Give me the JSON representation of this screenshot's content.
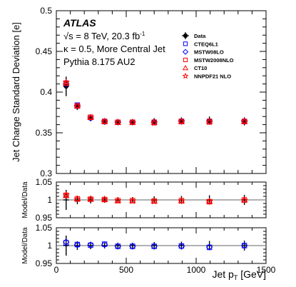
{
  "chart_data": [
    {
      "type": "scatter",
      "panel": "main",
      "ylabel": "Jet Charge Standard Deviation [e]",
      "xlim": [
        0,
        1500
      ],
      "ylim": [
        0.3,
        0.5
      ],
      "yticks": [
        0.3,
        0.35,
        0.4,
        0.45,
        0.5
      ],
      "ytick_labels": [
        "0.3",
        "0.35",
        "0.4",
        "0.45",
        "0.5"
      ],
      "annotations": {
        "atlas": "ATLAS",
        "energy": "√s = 8 TeV, 20.3 fb",
        "energy_sup": "-1",
        "kappa": "κ = 0.5, More Central Jet",
        "generator": "Pythia 8.175 AU2"
      },
      "legend_position": "top-right",
      "x": [
        70,
        150,
        245,
        345,
        440,
        545,
        700,
        895,
        1095,
        1345
      ],
      "series": [
        {
          "name": "Data",
          "marker": "filled-circle",
          "color": "#000000",
          "values": [
            0.407,
            0.382,
            0.368,
            0.363,
            0.363,
            0.363,
            0.364,
            0.365,
            0.365,
            0.364
          ],
          "errors": [
            0.012,
            0.004,
            0.003,
            0.003,
            0.003,
            0.003,
            0.004,
            0.004,
            0.005,
            0.005
          ]
        },
        {
          "name": "CTEQ6L1",
          "marker": "open-square",
          "color": "#0000ff",
          "values": [
            0.411,
            0.384,
            0.369,
            0.364,
            0.363,
            0.363,
            0.363,
            0.364,
            0.364,
            0.364
          ]
        },
        {
          "name": "MSTW08LO",
          "marker": "open-diamond",
          "color": "#0000ff",
          "values": [
            0.41,
            0.383,
            0.368,
            0.364,
            0.363,
            0.363,
            0.363,
            0.364,
            0.364,
            0.364
          ]
        },
        {
          "name": "MSTW2008NLO",
          "marker": "open-square",
          "color": "#ff0000",
          "values": [
            0.411,
            0.383,
            0.369,
            0.364,
            0.363,
            0.363,
            0.363,
            0.364,
            0.364,
            0.364
          ]
        },
        {
          "name": "CT10",
          "marker": "open-triangle",
          "color": "#ff0000",
          "values": [
            0.411,
            0.383,
            0.369,
            0.364,
            0.363,
            0.363,
            0.363,
            0.364,
            0.364,
            0.364
          ]
        },
        {
          "name": "NNPDF21 NLO",
          "marker": "star",
          "color": "#ff0000",
          "values": [
            0.412,
            0.383,
            0.369,
            0.364,
            0.363,
            0.363,
            0.362,
            0.364,
            0.363,
            0.364
          ]
        }
      ]
    },
    {
      "type": "scatter",
      "panel": "ratio-1",
      "ylabel": "Model/Data",
      "xlim": [
        0,
        1500
      ],
      "ylim": [
        0.95,
        1.05
      ],
      "yticks": [
        0.95,
        1.0,
        1.05
      ],
      "ytick_labels": [
        "0.95",
        "1",
        "1.05"
      ],
      "reference_line": 1.0,
      "x": [
        70,
        150,
        245,
        345,
        440,
        545,
        700,
        895,
        1095,
        1345
      ],
      "band": [
        0.028,
        0.012,
        0.01,
        0.008,
        0.008,
        0.008,
        0.01,
        0.011,
        0.013,
        0.014
      ],
      "series": [
        {
          "name": "MSTW2008NLO",
          "marker": "open-square",
          "color": "#ff0000",
          "values": [
            1.013,
            1.003,
            1.002,
            1.001,
            0.998,
            0.998,
            0.997,
            0.998,
            0.995,
            1.0
          ]
        },
        {
          "name": "CT10",
          "marker": "open-triangle",
          "color": "#ff0000",
          "values": [
            1.012,
            1.003,
            1.002,
            1.001,
            0.998,
            0.998,
            0.997,
            0.998,
            0.996,
            1.0
          ]
        },
        {
          "name": "NNPDF21 NLO",
          "marker": "star",
          "color": "#ff0000",
          "values": [
            1.014,
            1.002,
            1.003,
            1.002,
            0.998,
            0.997,
            0.996,
            0.997,
            0.996,
            0.999
          ]
        }
      ]
    },
    {
      "type": "scatter",
      "panel": "ratio-2",
      "ylabel": "Model/Data",
      "xlabel": "Jet p",
      "xlabel_sub": "T",
      "xlabel_unit": " [GeV]",
      "xlim": [
        0,
        1500
      ],
      "xticks": [
        0,
        500,
        1000,
        1500
      ],
      "xtick_labels": [
        "0",
        "500",
        "1000",
        "1500"
      ],
      "ylim": [
        0.95,
        1.05
      ],
      "yticks": [
        0.95,
        1.0,
        1.05
      ],
      "ytick_labels": [
        "0.95",
        "1",
        "1.05"
      ],
      "reference_line": 1.0,
      "x": [
        70,
        150,
        245,
        345,
        440,
        545,
        700,
        895,
        1095,
        1345
      ],
      "band": [
        0.028,
        0.012,
        0.01,
        0.008,
        0.008,
        0.008,
        0.01,
        0.011,
        0.013,
        0.014
      ],
      "series": [
        {
          "name": "CTEQ6L1",
          "marker": "open-square",
          "color": "#0000ff",
          "values": [
            1.008,
            1.003,
            1.001,
            1.004,
            0.998,
            0.998,
            0.998,
            0.999,
            0.995,
            1.0
          ]
        },
        {
          "name": "MSTW08LO",
          "marker": "open-diamond",
          "color": "#0000ff",
          "values": [
            1.01,
            1.002,
            1.002,
            1.003,
            0.998,
            0.998,
            0.998,
            0.998,
            0.996,
            1.0
          ]
        }
      ]
    }
  ]
}
